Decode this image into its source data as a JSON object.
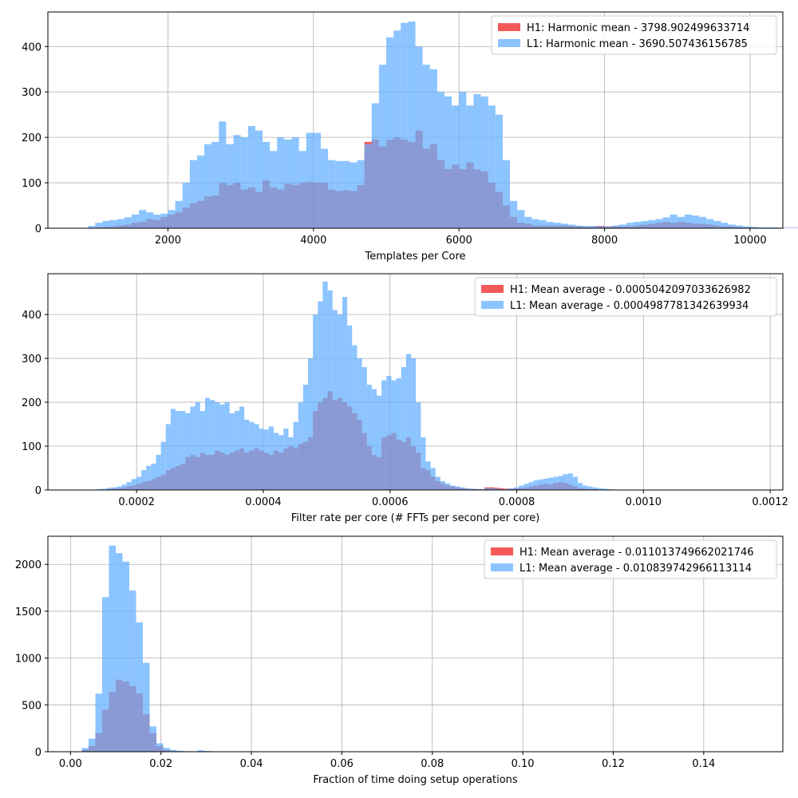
{
  "chart_data": [
    {
      "type": "bar",
      "xlabel": "Templates per Core",
      "xlim": [
        350,
        10450
      ],
      "ylim": [
        0,
        476
      ],
      "xticks": [
        2000,
        4000,
        6000,
        8000,
        10000
      ],
      "yticks": [
        0,
        100,
        200,
        300,
        400
      ],
      "grid": true,
      "legend_position": "top-right",
      "bin_start": 800,
      "bin_width": 100,
      "series": [
        {
          "name": "H1: Harmonic mean  - 3798.902499633714",
          "color": "#ee0000",
          "values": [
            0,
            0,
            2,
            3,
            4,
            6,
            8,
            12,
            14,
            20,
            18,
            25,
            30,
            35,
            45,
            55,
            60,
            70,
            72,
            100,
            95,
            100,
            85,
            90,
            80,
            105,
            90,
            85,
            98,
            95,
            100,
            102,
            100,
            100,
            85,
            82,
            84,
            82,
            95,
            190,
            195,
            180,
            195,
            200,
            195,
            190,
            215,
            175,
            185,
            150,
            130,
            140,
            130,
            145,
            130,
            125,
            100,
            80,
            50,
            25,
            12,
            10,
            6,
            6,
            6,
            6,
            6,
            5,
            4,
            3,
            4,
            5,
            4,
            4,
            4,
            4,
            6,
            8,
            10,
            12,
            14,
            12,
            14,
            12,
            10,
            10,
            8,
            6,
            4,
            4,
            3,
            2,
            2,
            1,
            1,
            1,
            1,
            1,
            1,
            0,
            0,
            0
          ]
        },
        {
          "name": "L1: Harmonic mean  - 3690.507436156785",
          "color": "#66b0ff",
          "values": [
            0,
            5,
            12,
            16,
            18,
            20,
            24,
            30,
            40,
            35,
            30,
            32,
            40,
            60,
            100,
            150,
            160,
            185,
            190,
            235,
            185,
            205,
            200,
            225,
            215,
            190,
            170,
            200,
            195,
            200,
            170,
            210,
            210,
            175,
            150,
            148,
            148,
            145,
            150,
            185,
            275,
            360,
            420,
            435,
            452,
            455,
            400,
            360,
            350,
            300,
            290,
            270,
            300,
            270,
            295,
            290,
            270,
            250,
            150,
            60,
            40,
            25,
            20,
            18,
            14,
            12,
            10,
            8,
            6,
            5,
            5,
            4,
            4,
            6,
            8,
            12,
            14,
            16,
            18,
            20,
            24,
            30,
            25,
            30,
            28,
            25,
            20,
            16,
            12,
            8,
            6,
            4,
            3,
            2,
            2,
            2,
            1,
            1,
            1,
            0,
            0,
            0
          ]
        }
      ]
    },
    {
      "type": "bar",
      "xlabel": "Filter rate per core (# FFTs per second per core)",
      "xlim": [
        6e-05,
        0.00122
      ],
      "ylim": [
        0,
        493
      ],
      "xticks": [
        0.0002,
        0.0004,
        0.0006,
        0.0008,
        0.001,
        0.0012
      ],
      "xtick_labels": [
        "0.0002",
        "0.0004",
        "0.0006",
        "0.0008",
        "0.0010",
        "0.0012"
      ],
      "yticks": [
        0,
        100,
        200,
        300,
        400
      ],
      "grid": true,
      "legend_position": "top-right",
      "bin_start": 0.00013,
      "bin_width": 7.74e-06,
      "series": [
        {
          "name": "H1: Mean average - 0.0005042097033626982",
          "color": "#ee0000",
          "values": [
            0,
            0,
            1,
            2,
            3,
            4,
            6,
            8,
            10,
            14,
            18,
            20,
            25,
            30,
            35,
            45,
            50,
            55,
            60,
            75,
            80,
            75,
            85,
            80,
            80,
            90,
            85,
            80,
            85,
            90,
            95,
            85,
            90,
            95,
            90,
            85,
            80,
            90,
            85,
            95,
            100,
            95,
            105,
            110,
            120,
            180,
            200,
            210,
            225,
            205,
            210,
            200,
            190,
            175,
            160,
            130,
            100,
            80,
            75,
            120,
            125,
            130,
            115,
            110,
            120,
            100,
            85,
            50,
            45,
            30,
            20,
            15,
            10,
            8,
            6,
            4,
            3,
            2,
            2,
            2,
            6,
            6,
            5,
            4,
            3,
            3,
            4,
            4,
            6,
            8,
            10,
            12,
            14,
            12,
            16,
            18,
            16,
            12,
            8,
            4,
            3,
            2,
            2,
            1,
            1,
            0,
            0
          ]
        },
        {
          "name": "L1: Mean average - 0.0004987781342639934",
          "color": "#66b0ff",
          "values": [
            0,
            2,
            3,
            5,
            6,
            8,
            12,
            18,
            25,
            30,
            45,
            55,
            60,
            80,
            110,
            150,
            185,
            180,
            180,
            175,
            190,
            200,
            180,
            210,
            205,
            200,
            195,
            200,
            175,
            180,
            190,
            160,
            155,
            150,
            140,
            138,
            145,
            130,
            125,
            140,
            120,
            155,
            200,
            240,
            300,
            400,
            430,
            475,
            455,
            410,
            400,
            440,
            375,
            330,
            300,
            280,
            240,
            230,
            215,
            250,
            260,
            250,
            255,
            280,
            310,
            300,
            200,
            120,
            65,
            50,
            30,
            20,
            15,
            10,
            8,
            6,
            4,
            3,
            2,
            2,
            4,
            4,
            3,
            2,
            2,
            4,
            6,
            10,
            14,
            18,
            22,
            24,
            26,
            28,
            30,
            32,
            36,
            38,
            30,
            16,
            10,
            8,
            6,
            4,
            3,
            2,
            1,
            1,
            1,
            0,
            0
          ]
        }
      ]
    },
    {
      "type": "bar",
      "xlabel": "Fraction of time doing setup operations",
      "xlim": [
        -0.005,
        0.1575
      ],
      "ylim": [
        0,
        2300
      ],
      "xticks": [
        0.0,
        0.02,
        0.04,
        0.06,
        0.08,
        0.1,
        0.12,
        0.14
      ],
      "xtick_labels": [
        "0.00",
        "0.02",
        "0.04",
        "0.06",
        "0.08",
        "0.10",
        "0.12",
        "0.14"
      ],
      "yticks": [
        0,
        500,
        1000,
        1500,
        2000
      ],
      "grid": true,
      "legend_position": "top-right",
      "bin_start": 0.0025,
      "bin_width": 0.0015,
      "series": [
        {
          "name": "H1: Mean average - 0.011013749662021746",
          "color": "#ee0000",
          "values": [
            20,
            60,
            200,
            450,
            640,
            770,
            750,
            700,
            620,
            400,
            200,
            60,
            20,
            8,
            5,
            4,
            3,
            2,
            2,
            1,
            1,
            0
          ]
        },
        {
          "name": "L1: Mean average - 0.010839742966113114",
          "color": "#66b0ff",
          "values": [
            40,
            140,
            620,
            1650,
            2200,
            2120,
            2030,
            1720,
            1380,
            950,
            270,
            90,
            40,
            20,
            10,
            6,
            4,
            15,
            8,
            4,
            2,
            0
          ]
        }
      ]
    }
  ]
}
